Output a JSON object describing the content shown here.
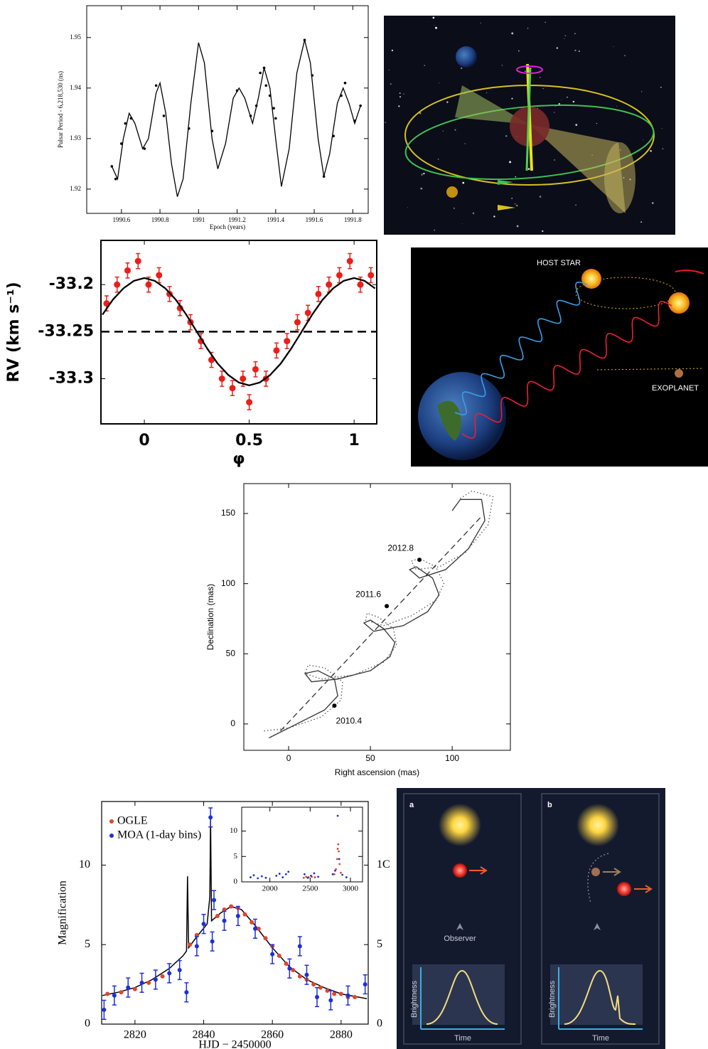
{
  "chart_data": [
    {
      "type": "line",
      "y_label": "Pulsar Period - 6,218,530 (ns)",
      "x_label": "Epoch (years)",
      "xlim": [
        1990.42,
        1991.88
      ],
      "ylim": [
        1.9152,
        1.9563
      ],
      "xticks": [
        1990.6,
        1990.8,
        1991,
        1991.2,
        1991.4,
        1991.6,
        1991.8
      ],
      "yticks": [
        1.92,
        1.93,
        1.94,
        1.95
      ],
      "series": [
        {
          "type": "line",
          "color": "#000000",
          "x": [
            1990.55,
            1990.58,
            1990.61,
            1990.64,
            1990.67,
            1990.71,
            1990.74,
            1990.78,
            1990.8,
            1990.83,
            1990.86,
            1990.89,
            1990.92,
            1990.96,
            1991.0,
            1991.03,
            1991.07,
            1991.1,
            1991.14,
            1991.18,
            1991.21,
            1991.24,
            1991.28,
            1991.31,
            1991.34,
            1991.37,
            1991.4,
            1991.43,
            1991.47,
            1991.51,
            1991.55,
            1991.58,
            1991.62,
            1991.65,
            1991.68,
            1991.72,
            1991.75,
            1991.78,
            1991.81,
            1991.84
          ],
          "values": [
            1.9245,
            1.922,
            1.93,
            1.935,
            1.933,
            1.928,
            1.93,
            1.939,
            1.941,
            1.935,
            1.925,
            1.9185,
            1.922,
            1.937,
            1.949,
            1.945,
            1.93,
            1.924,
            1.929,
            1.938,
            1.94,
            1.938,
            1.933,
            1.938,
            1.944,
            1.94,
            1.93,
            1.9205,
            1.928,
            1.943,
            1.9495,
            1.945,
            1.93,
            1.9225,
            1.927,
            1.937,
            1.94,
            1.937,
            1.933,
            1.9365
          ]
        },
        {
          "type": "scatter",
          "color": "#000000",
          "x": [
            1990.55,
            1990.57,
            1990.6,
            1990.62,
            1990.65,
            1990.72,
            1990.78,
            1990.82,
            1990.95,
            1991.07,
            1991.2,
            1991.27,
            1991.3,
            1991.32,
            1991.34,
            1991.35,
            1991.37,
            1991.39,
            1991.4,
            1991.55,
            1991.59,
            1991.65,
            1991.7,
            1991.74,
            1991.76,
            1991.81,
            1991.84
          ],
          "values": [
            1.9245,
            1.922,
            1.929,
            1.933,
            1.934,
            1.928,
            1.9405,
            1.9345,
            1.932,
            1.9315,
            1.9395,
            1.9345,
            1.9365,
            1.943,
            1.944,
            1.9405,
            1.9385,
            1.936,
            1.934,
            1.9495,
            1.9425,
            1.9225,
            1.9305,
            1.9385,
            1.941,
            1.9335,
            1.9365
          ]
        }
      ]
    },
    {
      "type": "scatter",
      "y_label": "RV (km s⁻¹)",
      "x_label": "φ",
      "xlim": [
        -0.207,
        1.108
      ],
      "ylim": [
        -33.348,
        -33.153
      ],
      "xticks": [
        0,
        0.5,
        1
      ],
      "yticks": [
        -33.2,
        -33.25,
        -33.3
      ],
      "hline": -33.25,
      "series": [
        {
          "type": "scatter",
          "color": "#e8201a",
          "error": 0.008,
          "x": [
            -0.18,
            -0.13,
            -0.08,
            -0.03,
            0.02,
            0.07,
            0.12,
            0.17,
            0.22,
            0.27,
            0.32,
            0.37,
            0.42,
            0.47,
            0.5,
            0.53,
            0.58,
            0.63,
            0.68,
            0.73,
            0.78,
            0.83,
            0.88,
            0.93,
            0.98,
            1.03,
            1.08
          ],
          "values": [
            -33.22,
            -33.2,
            -33.185,
            -33.175,
            -33.2,
            -33.19,
            -33.21,
            -33.225,
            -33.24,
            -33.26,
            -33.28,
            -33.3,
            -33.31,
            -33.3,
            -33.325,
            -33.29,
            -33.3,
            -33.27,
            -33.26,
            -33.24,
            -33.23,
            -33.21,
            -33.2,
            -33.19,
            -33.175,
            -33.2,
            -33.19
          ]
        },
        {
          "type": "line",
          "color": "#000000",
          "x": [
            -0.2,
            -0.15,
            -0.1,
            -0.05,
            0,
            0.05,
            0.1,
            0.15,
            0.2,
            0.25,
            0.3,
            0.35,
            0.4,
            0.45,
            0.5,
            0.55,
            0.6,
            0.65,
            0.7,
            0.75,
            0.8,
            0.85,
            0.9,
            0.95,
            1.0,
            1.05,
            1.1
          ],
          "values": [
            -33.232,
            -33.216,
            -33.204,
            -33.196,
            -33.193,
            -33.196,
            -33.204,
            -33.216,
            -33.232,
            -33.25,
            -33.268,
            -33.284,
            -33.296,
            -33.304,
            -33.307,
            -33.304,
            -33.296,
            -33.284,
            -33.268,
            -33.25,
            -33.232,
            -33.216,
            -33.204,
            -33.196,
            -33.193,
            -33.196,
            -33.204
          ]
        }
      ]
    },
    {
      "type": "line",
      "y_label": "Declination (mas)",
      "x_label": "Right ascension (mas)",
      "xlim": [
        -27.4,
        135.6
      ],
      "ylim": [
        -18.8,
        171.3
      ],
      "xticks": [
        0,
        50,
        100
      ],
      "yticks": [
        0,
        50,
        100,
        150
      ],
      "series": [
        {
          "type": "line",
          "color": "#333333",
          "dash": "solid",
          "x": [
            -12,
            5,
            22,
            30,
            28,
            18,
            10,
            14,
            30,
            50,
            62,
            65,
            58,
            50,
            46,
            52,
            70,
            85,
            92,
            88,
            78,
            74,
            80,
            96,
            110,
            120,
            118,
            105,
            100
          ],
          "values": [
            -10,
            0,
            10,
            20,
            32,
            38,
            36,
            30,
            32,
            38,
            48,
            58,
            68,
            74,
            72,
            66,
            70,
            80,
            92,
            104,
            112,
            110,
            104,
            110,
            125,
            145,
            160,
            160,
            152
          ]
        },
        {
          "type": "line",
          "color": "#555555",
          "dash": "dotted",
          "x": [
            -15,
            0,
            20,
            32,
            33,
            22,
            12,
            10,
            20,
            40,
            58,
            66,
            64,
            55,
            48,
            47,
            58,
            75,
            90,
            95,
            90,
            80,
            75,
            78,
            92,
            108,
            122,
            125,
            112,
            104
          ],
          "values": [
            -5,
            -3,
            5,
            17,
            30,
            40,
            42,
            36,
            32,
            35,
            44,
            56,
            68,
            76,
            79,
            74,
            70,
            77,
            88,
            100,
            112,
            118,
            116,
            110,
            112,
            122,
            142,
            162,
            166,
            160
          ]
        },
        {
          "type": "line",
          "color": "#333333",
          "dash": "dashed",
          "x": [
            -5,
            118
          ],
          "values": [
            -5,
            148
          ]
        }
      ],
      "markers": [
        {
          "x": 80,
          "y": 117,
          "label": "2012.8"
        },
        {
          "x": 60,
          "y": 84,
          "label": "2011.6"
        },
        {
          "x": 28,
          "y": 13,
          "label": "2010.4"
        }
      ]
    },
    {
      "type": "scatter",
      "y_label": "Magnification",
      "x_label": "HJD − 2450000",
      "xlim": [
        2810.3,
        2887.9
      ],
      "ylim": [
        0,
        14
      ],
      "xticks": [
        2820,
        2840,
        2860,
        2880
      ],
      "yticks": [
        0,
        5,
        10
      ],
      "y2ticks": [
        0,
        5,
        {
          "value": 10,
          "label": "1C"
        }
      ],
      "legend": "upper left",
      "series": [
        {
          "type": "line",
          "color": "#000000",
          "x": [
            2810.5,
            2815,
            2820,
            2825,
            2830,
            2834,
            2835,
            2835.3,
            2835.6,
            2838,
            2841,
            2841.8,
            2842,
            2842.3,
            2845,
            2848,
            2851,
            2855,
            2860,
            2865,
            2870,
            2875,
            2880,
            2885,
            2887.5
          ],
          "values": [
            1.8,
            2.0,
            2.3,
            2.8,
            3.5,
            4.3,
            4.6,
            9.3,
            4.8,
            5.5,
            6.3,
            8,
            13,
            6.5,
            7.0,
            7.4,
            7.2,
            6.2,
            4.8,
            3.6,
            2.8,
            2.3,
            1.9,
            1.7,
            1.6
          ]
        },
        {
          "type": "scatter",
          "name": "OGLE",
          "color": "#e0452b",
          "x": [
            2812,
            2816,
            2820,
            2824,
            2828,
            2836,
            2838,
            2844,
            2846,
            2848,
            2850,
            2852,
            2854,
            2856,
            2858,
            2860,
            2862,
            2864,
            2866,
            2868,
            2870,
            2872,
            2874,
            2876,
            2878,
            2880,
            2882,
            2884
          ],
          "values": [
            1.9,
            2.0,
            2.2,
            2.6,
            3.0,
            5.0,
            5.6,
            6.8,
            7.2,
            7.4,
            7.3,
            6.9,
            6.4,
            6.0,
            5.4,
            4.9,
            4.3,
            3.8,
            3.4,
            3.0,
            2.8,
            2.5,
            2.3,
            2.1,
            1.9,
            1.9,
            1.7,
            1.7
          ]
        },
        {
          "type": "scatter",
          "name": "MOA (1-day bins)",
          "color": "#1f2fd6",
          "error": 0.6,
          "x": [
            2811,
            2814,
            2818,
            2822,
            2826,
            2830,
            2833,
            2835,
            2838,
            2840,
            2842,
            2842.5,
            2843,
            2846,
            2850,
            2855,
            2860,
            2865,
            2868,
            2870,
            2873,
            2877,
            2882,
            2887
          ],
          "values": [
            0.9,
            1.8,
            2.3,
            2.6,
            2.8,
            3.2,
            3.4,
            2.0,
            4.9,
            6.3,
            13.0,
            5.2,
            7.8,
            6.5,
            6.8,
            6.0,
            4.4,
            3.5,
            4.9,
            3.1,
            1.7,
            1.5,
            1.8,
            2.5
          ]
        }
      ],
      "inset": {
        "xlim": [
          1650,
          3150
        ],
        "ylim": [
          0,
          14.7
        ],
        "xticks": [
          2000,
          2500,
          3000
        ],
        "yticks": [
          0,
          5,
          10
        ],
        "series": [
          {
            "type": "scatter",
            "color": "#e0452b",
            "x": [
              2420,
              2450,
              2480,
              2520,
              2560,
              2800,
              2820,
              2835,
              2842,
              2848,
              2855,
              2865,
              2880
            ],
            "values": [
              0.8,
              1.0,
              0.9,
              1.0,
              0.9,
              1.5,
              2.5,
              4.5,
              6.5,
              7.4,
              6.0,
              3.5,
              1.8
            ]
          },
          {
            "type": "scatter",
            "color": "#1f2fd6",
            "x": [
              1760,
              1800,
              1850,
              1900,
              1950,
              2080,
              2120,
              2160,
              2200,
              2230,
              2430,
              2470,
              2510,
              2550,
              2600,
              2780,
              2810,
              2842,
              2860,
              2900,
              2950
            ],
            "values": [
              0.9,
              1.3,
              0.7,
              1.1,
              0.8,
              1.2,
              1.6,
              0.9,
              1.5,
              2.0,
              1.5,
              0.8,
              1.2,
              1.7,
              1.0,
              1.5,
              2.2,
              13.0,
              4.5,
              1.4,
              0.9
            ]
          }
        ]
      }
    }
  ],
  "illustrations": {
    "doppler": {
      "host_star": "HOST STAR",
      "exoplanet": "EXOPLANET"
    },
    "lensing": {
      "panels": [
        {
          "label": "a",
          "observer": "Observer",
          "y_label": "Brightness",
          "x_label": "Time"
        },
        {
          "label": "b",
          "y_label": "Brightness",
          "x_label": "Time"
        }
      ]
    }
  }
}
